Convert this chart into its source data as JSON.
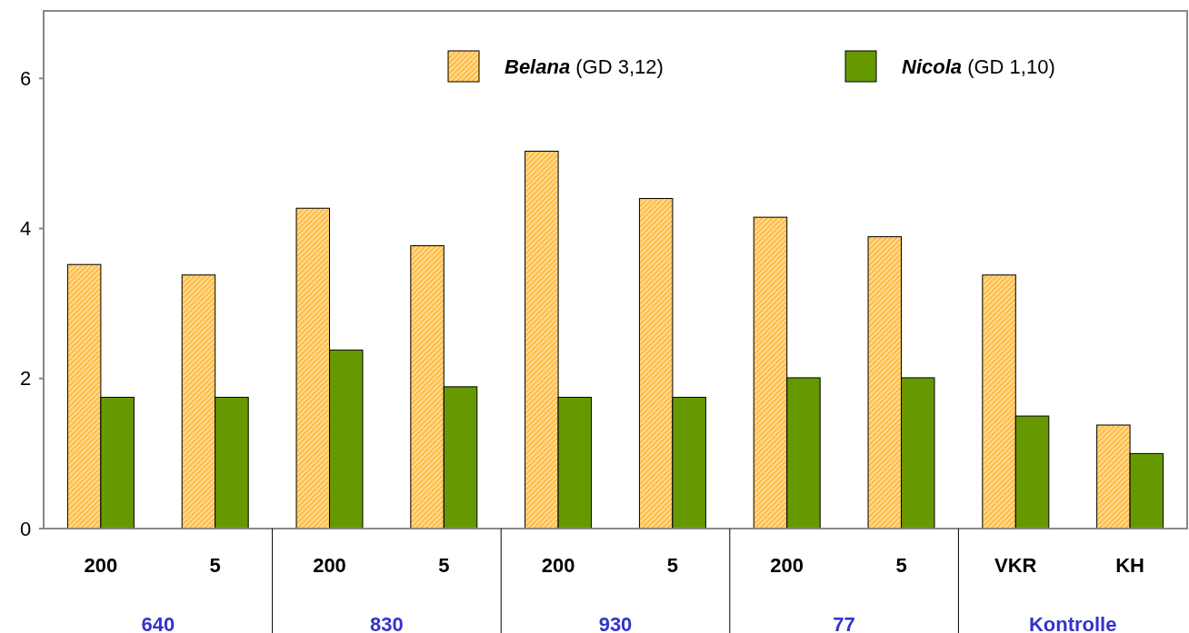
{
  "chart_data": {
    "type": "bar",
    "categories": [
      "200",
      "5",
      "200",
      "5",
      "200",
      "5",
      "200",
      "5",
      "VKR",
      "KH"
    ],
    "series": [
      {
        "name": "Belana (GD 3,12)",
        "color": "#ffc04d",
        "values": [
          3.52,
          3.38,
          4.27,
          3.77,
          5.03,
          4.4,
          4.15,
          3.89,
          3.38,
          1.38
        ]
      },
      {
        "name": "Nicola (GD 1,10)",
        "color": "#669900",
        "values": [
          1.75,
          1.75,
          2.38,
          1.89,
          1.75,
          1.75,
          2.01,
          2.01,
          1.5,
          1.0
        ]
      }
    ],
    "annotations": [
      "640",
      "830",
      "930",
      "77",
      "Kontrolle"
    ],
    "ylim": [
      0,
      6.9
    ],
    "yticks": [
      0,
      2,
      4,
      6
    ],
    "grid": false,
    "legend": "top right"
  }
}
